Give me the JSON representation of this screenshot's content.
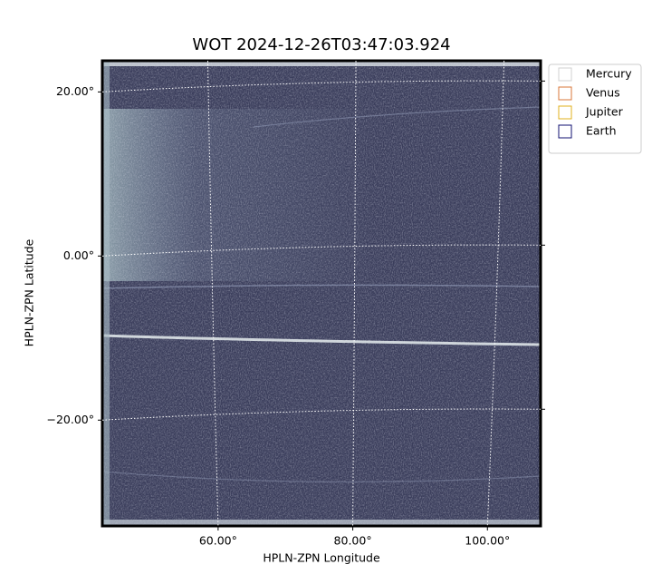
{
  "chart_data": {
    "type": "image",
    "title": "WOT 2024-12-26T03:47:03.924",
    "xlabel": "HPLN-ZPN Longitude",
    "ylabel": "HPLN-ZPN Latitude",
    "xlim": [
      42.8,
      107.9
    ],
    "ylim": [
      -32.9,
      23.8
    ],
    "xticks": [
      {
        "value": 60,
        "label": "60.00°"
      },
      {
        "value": 80,
        "label": "80.00°"
      },
      {
        "value": 100,
        "label": "100.00°"
      }
    ],
    "yticks": [
      {
        "value": -20,
        "label": "−20.00°"
      },
      {
        "value": 0,
        "label": "0.00°"
      },
      {
        "value": 20,
        "label": "20.00°"
      }
    ],
    "grid": true,
    "legend": "outside-upper-right",
    "series": [
      {
        "name": "Mercury",
        "color": "#d0d0d0"
      },
      {
        "name": "Venus",
        "color": "#d9773a"
      },
      {
        "name": "Jupiter",
        "color": "#e2b01e"
      },
      {
        "name": "Earth",
        "color": "#101070"
      }
    ]
  }
}
